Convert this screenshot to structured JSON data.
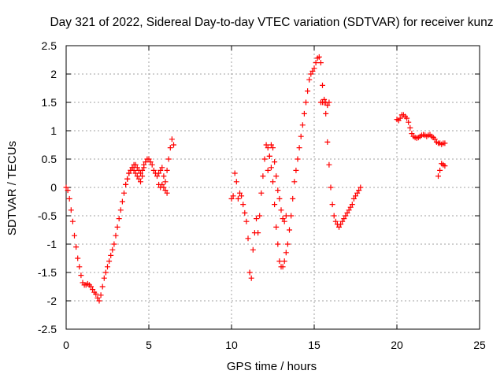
{
  "chart_data": {
    "type": "scatter",
    "title": "Day 321 of 2022, Sidereal Day-to-day VTEC variation (SDTVAR) for receiver kunz",
    "xlabel": "GPS time / hours",
    "ylabel": "SDTVAR / TECUs",
    "xlim": [
      0,
      25
    ],
    "ylim": [
      -2.5,
      2.5
    ],
    "xticks": [
      0,
      5,
      10,
      15,
      20,
      25
    ],
    "yticks": [
      -2.5,
      -2,
      -1.5,
      -1,
      -0.5,
      0,
      0.5,
      1,
      1.5,
      2,
      2.5
    ],
    "xtick_labels": [
      "0",
      "5",
      "10",
      "15",
      "20",
      "25"
    ],
    "ytick_labels": [
      "-2.5",
      "-2",
      "-1.5",
      "-1",
      "-0.5",
      "0",
      "0.5",
      "1",
      "1.5",
      "2",
      "2.5"
    ],
    "grid": true,
    "marker": "+",
    "color": "#ff0000",
    "series": [
      {
        "name": "SDTVAR",
        "segments": [
          {
            "x": [
              0,
              0.1,
              0.2,
              0.3,
              0.4,
              0.5,
              0.6,
              0.7,
              0.8,
              0.9,
              1.0,
              1.1,
              1.2,
              1.3,
              1.4,
              1.5,
              1.6,
              1.7,
              1.8,
              1.9,
              2.0,
              2.1,
              2.2,
              2.3,
              2.4,
              2.5,
              2.6,
              2.7,
              2.8,
              2.9,
              3.0,
              3.1,
              3.2,
              3.3,
              3.4,
              3.5,
              3.6,
              3.7,
              3.8,
              3.9,
              4.0,
              4.1,
              4.2,
              4.3,
              4.4,
              4.5,
              4.6,
              4.7,
              4.8,
              4.9,
              5.0,
              5.1,
              5.2,
              5.3,
              5.4,
              5.5,
              5.6,
              5.7,
              5.8,
              5.9,
              6.0,
              6.1,
              6.2,
              6.3,
              6.4,
              6.5
            ],
            "y": [
              0.0,
              -0.05,
              -0.2,
              -0.4,
              -0.6,
              -0.85,
              -1.05,
              -1.25,
              -1.4,
              -1.55,
              -1.68,
              -1.72,
              -1.72,
              -1.7,
              -1.72,
              -1.75,
              -1.8,
              -1.85,
              -1.88,
              -1.95,
              -2.0,
              -1.9,
              -1.75,
              -1.6,
              -1.5,
              -1.4,
              -1.3,
              -1.2,
              -1.1,
              -1.0,
              -0.85,
              -0.7,
              -0.55,
              -0.4,
              -0.25,
              -0.1,
              0.05,
              0.15,
              0.25,
              0.3,
              0.35,
              0.3,
              0.25,
              0.2,
              0.15,
              0.1,
              0.2,
              0.35,
              0.45,
              0.5,
              0.5,
              0.45,
              0.4,
              0.3,
              0.25,
              0.2,
              0.25,
              0.3,
              0.35,
              0.2,
              0.1,
              0.3,
              0.5,
              0.7,
              0.85,
              0.75
            ]
          },
          {
            "x": [
              3.6,
              3.7,
              3.8,
              3.9,
              4.0,
              4.1,
              4.2,
              4.3,
              4.4,
              4.5,
              4.6,
              4.7
            ],
            "y": [
              0.05,
              0.15,
              0.25,
              0.3,
              0.35,
              0.4,
              0.4,
              0.35,
              0.3,
              0.25,
              0.3,
              0.4
            ]
          },
          {
            "x": [
              5.6,
              5.7,
              5.8,
              5.9,
              6.0,
              6.1
            ],
            "y": [
              0.05,
              0.0,
              0.05,
              0.0,
              -0.05,
              -0.1
            ]
          },
          {
            "x": [
              10.0,
              10.1,
              10.2,
              10.3,
              10.4,
              10.5,
              10.6,
              10.7,
              10.8,
              10.9,
              11.0,
              11.1,
              11.2,
              11.3,
              11.4,
              11.5,
              11.6,
              11.7,
              11.8,
              11.9,
              12.0,
              12.1,
              12.2,
              12.3,
              12.4,
              12.5,
              12.6,
              12.7,
              12.8,
              12.9,
              13.0,
              13.1,
              13.2,
              13.3,
              13.4,
              13.5,
              13.6,
              13.7,
              13.8,
              13.9,
              14.0,
              14.1,
              14.2,
              14.3,
              14.4,
              14.5,
              14.6,
              14.7,
              14.8,
              14.9,
              15.0,
              15.1,
              15.2,
              15.3,
              15.4,
              15.5,
              15.6,
              15.7,
              15.8,
              15.9,
              16.0,
              16.1,
              16.2,
              16.3,
              16.4,
              16.5,
              16.6,
              16.7,
              16.8,
              16.9,
              17.0,
              17.1,
              17.2,
              17.3,
              17.4,
              17.5,
              17.6,
              17.7,
              17.8
            ],
            "y": [
              -0.2,
              -0.15,
              0.25,
              0.1,
              -0.2,
              -0.1,
              -0.15,
              -0.3,
              -0.45,
              -0.6,
              -0.9,
              -1.5,
              -1.6,
              -1.1,
              -0.8,
              -0.55,
              -0.8,
              -0.5,
              -0.1,
              0.2,
              0.5,
              0.75,
              0.7,
              0.55,
              0.35,
              0.1,
              -0.3,
              -0.7,
              -1.0,
              -1.3,
              -1.4,
              -1.4,
              -1.3,
              -1.15,
              -1.0,
              -0.75,
              -0.5,
              -0.2,
              0.1,
              0.3,
              0.5,
              0.7,
              0.9,
              1.1,
              1.3,
              1.5,
              1.7,
              1.9,
              2.0,
              2.05,
              2.1,
              2.2,
              2.28,
              2.3,
              2.2,
              1.8,
              1.5,
              1.3,
              0.8,
              0.4,
              0.0,
              -0.3,
              -0.5,
              -0.6,
              -0.65,
              -0.7,
              -0.65,
              -0.6,
              -0.55,
              -0.5,
              -0.45,
              -0.4,
              -0.35,
              -0.3,
              -0.2,
              -0.15,
              -0.1,
              -0.05,
              0.0
            ]
          },
          {
            "x": [
              12.2,
              12.3,
              12.4,
              12.5,
              12.6,
              12.7,
              12.8,
              12.9,
              13.0,
              13.1,
              13.2,
              13.3
            ],
            "y": [
              0.3,
              0.55,
              0.75,
              0.7,
              0.45,
              0.2,
              -0.05,
              -0.2,
              -0.4,
              -0.55,
              -0.6,
              -0.5
            ]
          },
          {
            "x": [
              15.4,
              15.5,
              15.6,
              15.7,
              15.8,
              15.9
            ],
            "y": [
              1.5,
              1.5,
              1.55,
              1.5,
              1.45,
              1.5
            ]
          },
          {
            "x": [
              20.0,
              20.1,
              20.2,
              20.3,
              20.4,
              20.5,
              20.6,
              20.7,
              20.8,
              20.9,
              21.0,
              21.1,
              21.2,
              21.3,
              21.4,
              21.5,
              21.6,
              21.7,
              21.8,
              21.9,
              22.0,
              22.1,
              22.2,
              22.3,
              22.4,
              22.5,
              22.6,
              22.7,
              22.8,
              22.9
            ],
            "y": [
              1.2,
              1.18,
              1.22,
              1.28,
              1.28,
              1.25,
              1.22,
              1.15,
              1.05,
              0.95,
              0.9,
              0.88,
              0.87,
              0.88,
              0.9,
              0.92,
              0.93,
              0.92,
              0.9,
              0.92,
              0.93,
              0.9,
              0.88,
              0.85,
              0.8,
              0.78,
              0.78,
              0.76,
              0.78,
              0.78
            ]
          },
          {
            "x": [
              22.5,
              22.6,
              22.7,
              22.8,
              22.9
            ],
            "y": [
              0.2,
              0.3,
              0.42,
              0.4,
              0.38
            ]
          }
        ]
      }
    ]
  }
}
